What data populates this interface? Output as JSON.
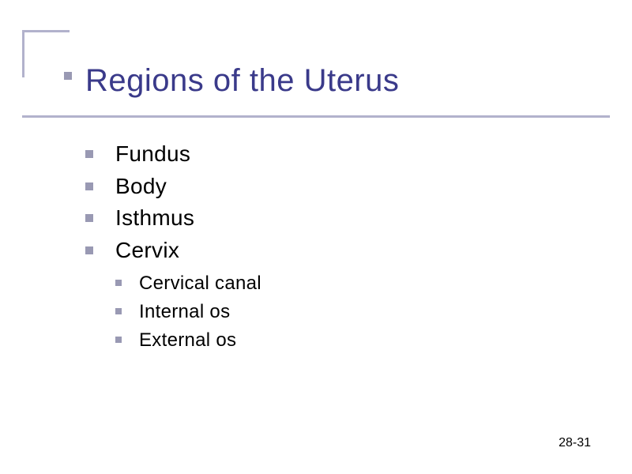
{
  "slide": {
    "title": "Regions of the Uterus",
    "page_number": "28-31",
    "background_color": "#ffffff",
    "title_color": "#3a3a8a",
    "text_color": "#000000",
    "accent_color": "#b2b2cc",
    "bullet_color": "#9999b3",
    "title_fontsize": 40,
    "l1_fontsize": 28,
    "l2_fontsize": 24,
    "bullets": [
      {
        "label": "Fundus"
      },
      {
        "label": "Body"
      },
      {
        "label": "Isthmus"
      },
      {
        "label": "Cervix",
        "children": [
          {
            "label": "Cervical canal"
          },
          {
            "label": "Internal os"
          },
          {
            "label": "External os"
          }
        ]
      }
    ]
  }
}
